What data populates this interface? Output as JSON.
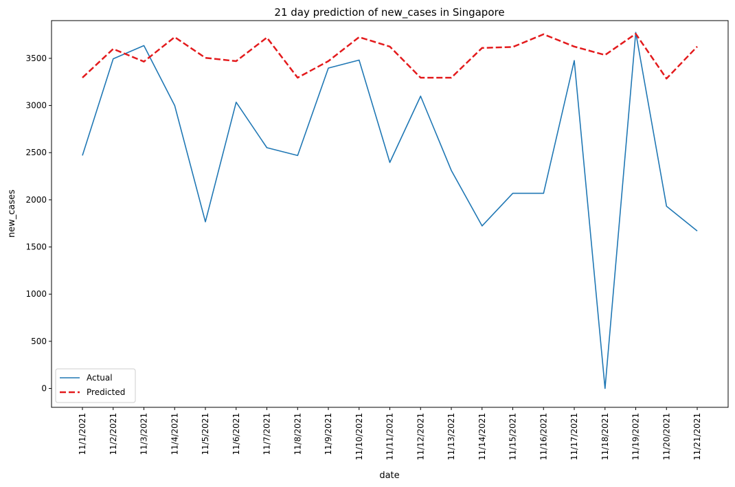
{
  "chart_data": {
    "type": "line",
    "title": "21 day prediction of new_cases in Singapore",
    "xlabel": "date",
    "ylabel": "new_cases",
    "categories": [
      "11/1/2021",
      "11/2/2021",
      "11/3/2021",
      "11/4/2021",
      "11/5/2021",
      "11/6/2021",
      "11/7/2021",
      "11/8/2021",
      "11/9/2021",
      "11/10/2021",
      "11/11/2021",
      "11/12/2021",
      "11/13/2021",
      "11/14/2021",
      "11/15/2021",
      "11/16/2021",
      "11/17/2021",
      "11/18/2021",
      "11/19/2021",
      "11/20/2021",
      "11/21/2021"
    ],
    "ylim": [
      -200,
      3900
    ],
    "yticks": [
      0,
      500,
      1000,
      1500,
      2000,
      2500,
      3000,
      3500
    ],
    "grid": false,
    "legend_position": "lower-left",
    "series": [
      {
        "name": "Actual",
        "color": "#1f77b4",
        "style": "solid",
        "values": [
          2470,
          3495,
          3635,
          3000,
          1767,
          3035,
          2553,
          2470,
          3397,
          3481,
          2396,
          3099,
          2312,
          1723,
          2069,
          2069,
          3476,
          0,
          3775,
          1932,
          1670
        ]
      },
      {
        "name": "Predicted",
        "color": "#e31a1c",
        "style": "dashed",
        "values": [
          3295,
          3600,
          3465,
          3725,
          3505,
          3470,
          3720,
          3295,
          3470,
          3725,
          3625,
          3295,
          3295,
          3610,
          3620,
          3755,
          3625,
          3535,
          3760,
          3285,
          3625
        ]
      }
    ]
  }
}
